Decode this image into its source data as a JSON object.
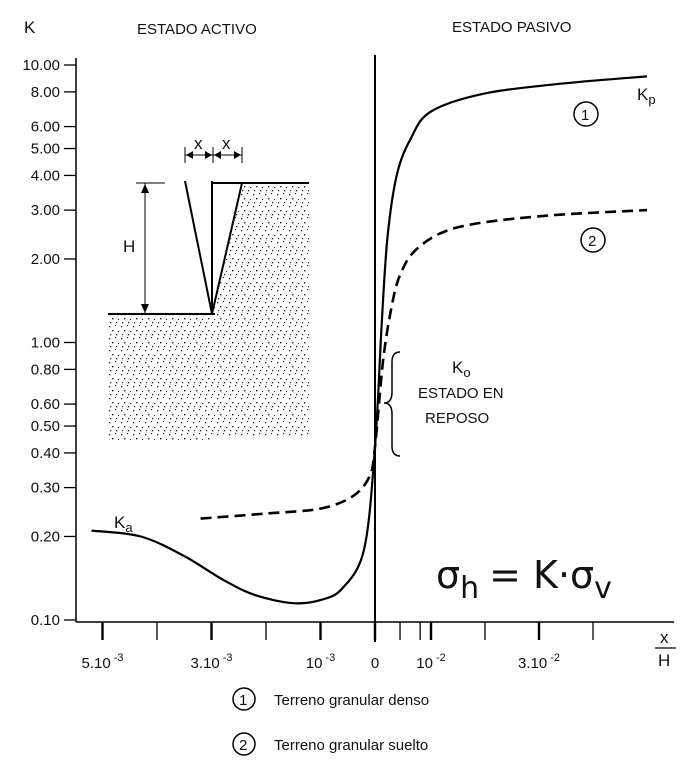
{
  "chart_data": {
    "type": "line",
    "y_axis_label": "K",
    "x_axis_label_num": "x",
    "x_axis_label_den": "H",
    "y_scale": "log",
    "ylim": [
      0.1,
      10.0
    ],
    "y_ticks": [
      {
        "v": 10.0,
        "label": "10.00"
      },
      {
        "v": 8.0,
        "label": "8.00"
      },
      {
        "v": 6.0,
        "label": "6.00"
      },
      {
        "v": 5.0,
        "label": "5.00"
      },
      {
        "v": 4.0,
        "label": "4.00"
      },
      {
        "v": 3.0,
        "label": "3.00"
      },
      {
        "v": 2.0,
        "label": "2.00"
      },
      {
        "v": 1.0,
        "label": "1.00"
      },
      {
        "v": 0.8,
        "label": "0.80"
      },
      {
        "v": 0.6,
        "label": "0.60"
      },
      {
        "v": 0.5,
        "label": "0.50"
      },
      {
        "v": 0.4,
        "label": "0.40"
      },
      {
        "v": 0.3,
        "label": "0.30"
      },
      {
        "v": 0.2,
        "label": "0.20"
      },
      {
        "v": 0.1,
        "label": "0.10"
      }
    ],
    "x_ticks": [
      {
        "v": -0.005,
        "label": "5.10",
        "exp": "-3"
      },
      {
        "v": -0.003,
        "label": "3.10",
        "exp": "-3"
      },
      {
        "v": -0.001,
        "label": "10",
        "exp": "-3"
      },
      {
        "v": 0,
        "label": "0",
        "exp": ""
      },
      {
        "v": 0.01,
        "label": "10",
        "exp": "-2"
      },
      {
        "v": 0.03,
        "label": "3.10",
        "exp": "-2"
      }
    ],
    "sections": {
      "left": "ESTADO ACTIVO",
      "right": "ESTADO PASIVO"
    },
    "series": [
      {
        "name": "1",
        "style": "solid",
        "points": [
          {
            "x": -0.0052,
            "y": 0.21
          },
          {
            "x": -0.0043,
            "y": 0.2
          },
          {
            "x": -0.0035,
            "y": 0.17
          },
          {
            "x": -0.0028,
            "y": 0.14
          },
          {
            "x": -0.0022,
            "y": 0.123
          },
          {
            "x": -0.0015,
            "y": 0.115
          },
          {
            "x": -0.001,
            "y": 0.118
          },
          {
            "x": -0.0006,
            "y": 0.13
          },
          {
            "x": -0.0002,
            "y": 0.18
          },
          {
            "x": 0,
            "y": 0.42
          },
          {
            "x": 0.00015,
            "y": 1.2
          },
          {
            "x": 0.0005,
            "y": 2.4
          },
          {
            "x": 0.0015,
            "y": 4.0
          },
          {
            "x": 0.004,
            "y": 5.4
          },
          {
            "x": 0.01,
            "y": 6.8
          },
          {
            "x": 0.02,
            "y": 7.9
          },
          {
            "x": 0.035,
            "y": 8.6
          },
          {
            "x": 0.05,
            "y": 9.1
          }
        ]
      },
      {
        "name": "2",
        "style": "dashed",
        "points": [
          {
            "x": -0.0032,
            "y": 0.232
          },
          {
            "x": -0.002,
            "y": 0.242
          },
          {
            "x": -0.001,
            "y": 0.252
          },
          {
            "x": -0.0004,
            "y": 0.28
          },
          {
            "x": -0.0001,
            "y": 0.33
          },
          {
            "x": 0,
            "y": 0.42
          },
          {
            "x": 0.0002,
            "y": 0.85
          },
          {
            "x": 0.0008,
            "y": 1.3
          },
          {
            "x": 0.002,
            "y": 1.75
          },
          {
            "x": 0.006,
            "y": 2.2
          },
          {
            "x": 0.015,
            "y": 2.6
          },
          {
            "x": 0.03,
            "y": 2.85
          },
          {
            "x": 0.05,
            "y": 3.0
          }
        ]
      }
    ],
    "annotations": {
      "kp": {
        "main": "K",
        "sub": "p"
      },
      "ka": {
        "main": "K",
        "sub": "a"
      },
      "ko": {
        "main": "K",
        "sub": "o"
      },
      "estado_en": "ESTADO EN",
      "reposo": "REPOSO",
      "circle1": "1",
      "circle2": "2",
      "inset_x1": "x",
      "inset_x2": "x",
      "inset_h": "H"
    },
    "formula": {
      "sigma": "σ",
      "h": "h",
      "eq": "= K·σ",
      "v": "v"
    }
  },
  "legend": [
    {
      "num": "1",
      "text": "Terreno granular denso"
    },
    {
      "num": "2",
      "text": "Terreno granular suelto"
    }
  ]
}
